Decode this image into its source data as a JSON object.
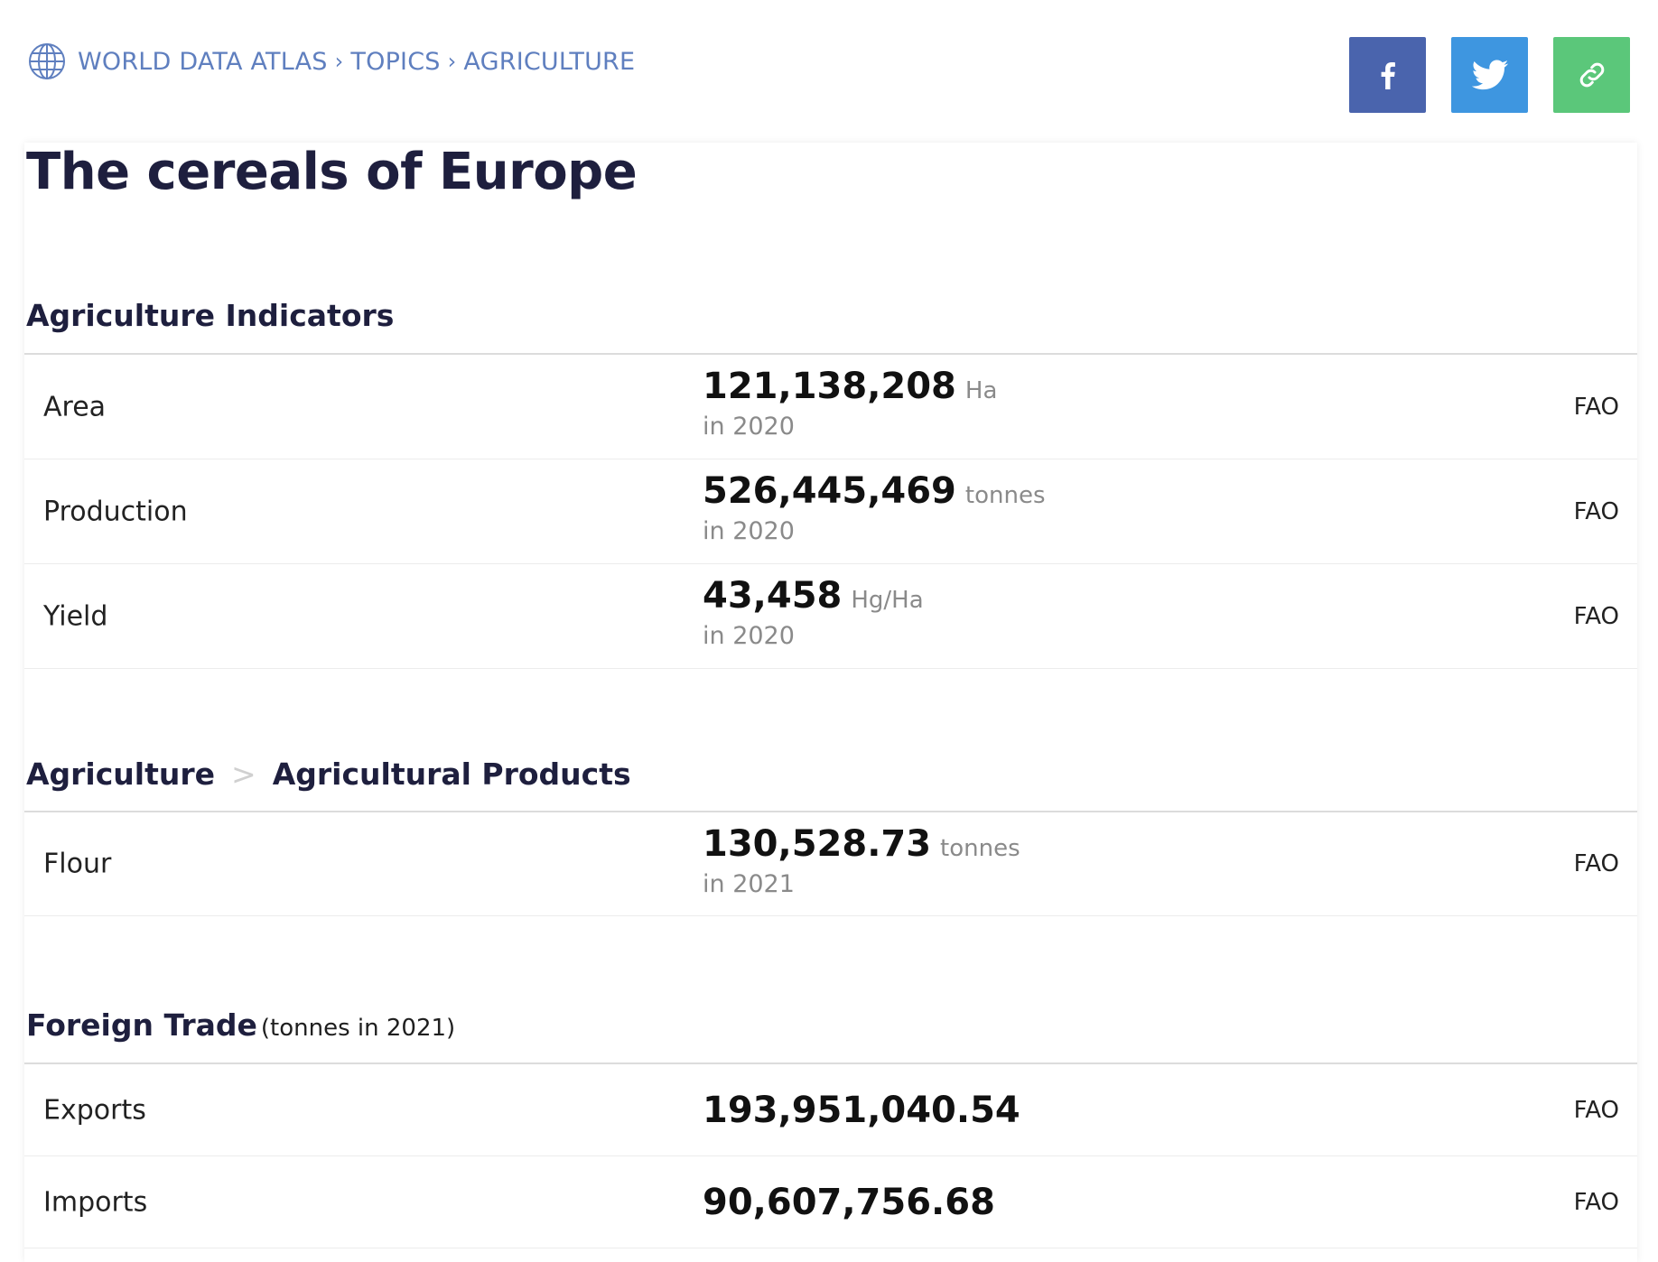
{
  "breadcrumb": {
    "items": [
      "WORLD DATA ATLAS",
      "TOPICS",
      "AGRICULTURE"
    ],
    "separator": "›"
  },
  "share": {
    "facebook_icon": "facebook-icon",
    "twitter_icon": "twitter-icon",
    "link_icon": "link-icon",
    "colors": {
      "facebook": "#4a64ad",
      "twitter": "#3e96e0",
      "link": "#5bc77a"
    }
  },
  "page": {
    "title": "The cereals of Europe"
  },
  "indicators": {
    "title": "Agriculture Indicators",
    "rows": [
      {
        "label": "Area",
        "value": "121,138,208",
        "unit": "Ha",
        "year": "in 2020",
        "source": "FAO"
      },
      {
        "label": "Production",
        "value": "526,445,469",
        "unit": "tonnes",
        "year": "in 2020",
        "source": "FAO"
      },
      {
        "label": "Yield",
        "value": "43,458",
        "unit": "Hg/Ha",
        "year": "in 2020",
        "source": "FAO"
      }
    ]
  },
  "products": {
    "crumb_parent": "Agriculture",
    "crumb_separator": ">",
    "crumb_child": "Agricultural Products",
    "rows": [
      {
        "label": "Flour",
        "value": "130,528.73",
        "unit": "tonnes",
        "year": "in 2021",
        "source": "FAO"
      }
    ]
  },
  "trade": {
    "title": "Foreign Trade",
    "subtitle": "(tonnes in 2021)",
    "rows": [
      {
        "label": "Exports",
        "value": "193,951,040.54",
        "source": "FAO"
      },
      {
        "label": "Imports",
        "value": "90,607,756.68",
        "source": "FAO"
      }
    ]
  }
}
